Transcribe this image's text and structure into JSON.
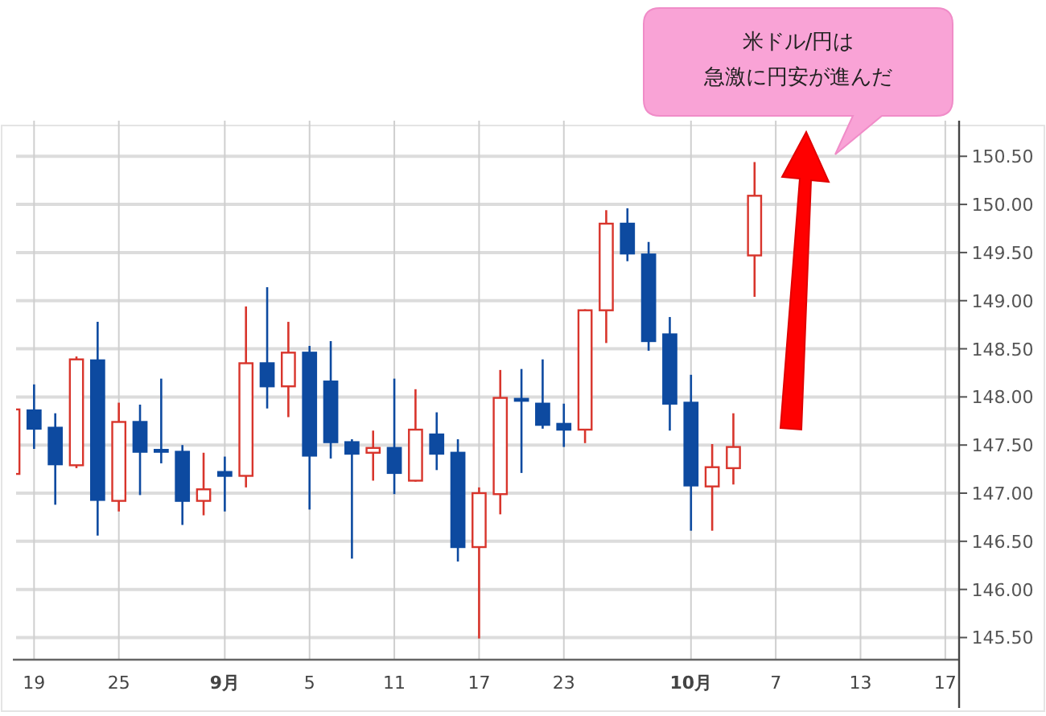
{
  "chart_data": {
    "type": "candlestick",
    "categories": [
      null,
      "19",
      null,
      null,
      null,
      "25",
      null,
      null,
      null,
      null,
      "9月",
      null,
      null,
      null,
      "5",
      null,
      null,
      null,
      "11",
      null,
      null,
      null,
      "17",
      null,
      null,
      null,
      "23",
      null,
      null,
      null,
      null,
      null,
      "10月",
      null,
      null,
      null,
      "7",
      null,
      null,
      null,
      "13",
      null,
      null,
      null,
      "17"
    ],
    "ohlc": [
      [
        147.2,
        147.87,
        147.2,
        147.87
      ],
      [
        147.86,
        148.13,
        147.46,
        147.67
      ],
      [
        147.68,
        147.83,
        146.88,
        147.3
      ],
      [
        147.29,
        148.42,
        147.26,
        148.39
      ],
      [
        148.38,
        148.78,
        146.56,
        146.93
      ],
      [
        146.92,
        147.94,
        146.81,
        147.74
      ],
      [
        147.74,
        147.92,
        146.98,
        147.43
      ],
      [
        147.45,
        148.19,
        147.31,
        147.44
      ],
      [
        147.43,
        147.5,
        146.67,
        146.92
      ],
      [
        146.92,
        147.42,
        146.77,
        147.04
      ],
      [
        147.22,
        147.38,
        146.81,
        147.18
      ],
      [
        147.18,
        148.94,
        147.06,
        148.35
      ],
      [
        148.35,
        149.14,
        147.88,
        148.11
      ],
      [
        148.11,
        148.78,
        147.79,
        148.46
      ],
      [
        148.46,
        148.53,
        146.83,
        147.39
      ],
      [
        148.16,
        148.58,
        147.36,
        147.53
      ],
      [
        147.53,
        147.56,
        146.32,
        147.41
      ],
      [
        147.42,
        147.65,
        147.13,
        147.47
      ],
      [
        147.47,
        148.19,
        146.99,
        147.21
      ],
      [
        147.13,
        148.08,
        147.12,
        147.66
      ],
      [
        147.61,
        147.84,
        147.24,
        147.41
      ],
      [
        147.42,
        147.56,
        146.29,
        146.44
      ],
      [
        146.44,
        147.06,
        145.49,
        147.0
      ],
      [
        146.99,
        148.28,
        146.78,
        147.99
      ],
      [
        147.98,
        148.29,
        147.21,
        147.97
      ],
      [
        147.93,
        148.39,
        147.67,
        147.71
      ],
      [
        147.72,
        147.93,
        147.48,
        147.66
      ],
      [
        147.66,
        148.91,
        147.52,
        148.9
      ],
      [
        148.9,
        149.94,
        148.56,
        149.8
      ],
      [
        149.8,
        149.96,
        149.41,
        149.49
      ],
      [
        149.48,
        149.61,
        148.48,
        148.58
      ],
      [
        148.65,
        148.83,
        147.65,
        147.93
      ],
      [
        147.94,
        148.23,
        146.61,
        147.08
      ],
      [
        147.07,
        147.51,
        146.61,
        147.27
      ],
      [
        147.26,
        147.83,
        147.09,
        147.48
      ],
      [
        149.47,
        150.44,
        149.04,
        150.09
      ],
      null,
      null,
      null,
      null,
      null,
      null,
      null,
      null,
      null
    ],
    "ylim": [
      145.27,
      150.87
    ],
    "yticks": [
      {
        "value": 145.5,
        "label": "145.50"
      },
      {
        "value": 146,
        "label": "146.00"
      },
      {
        "value": 146.5,
        "label": "146.50"
      },
      {
        "value": 147,
        "label": "147.00"
      },
      {
        "value": 147.5,
        "label": "147.50"
      },
      {
        "value": 148,
        "label": "148.00"
      },
      {
        "value": 148.5,
        "label": "148.50"
      },
      {
        "value": 149,
        "label": "149.00"
      },
      {
        "value": 149.5,
        "label": "149.50"
      },
      {
        "value": 150,
        "label": "150.00"
      },
      {
        "value": 150.5,
        "label": "150.50"
      }
    ],
    "grid": true,
    "annotations": [
      "米ドル/円は",
      "急激に円安が進んだ"
    ]
  }
}
